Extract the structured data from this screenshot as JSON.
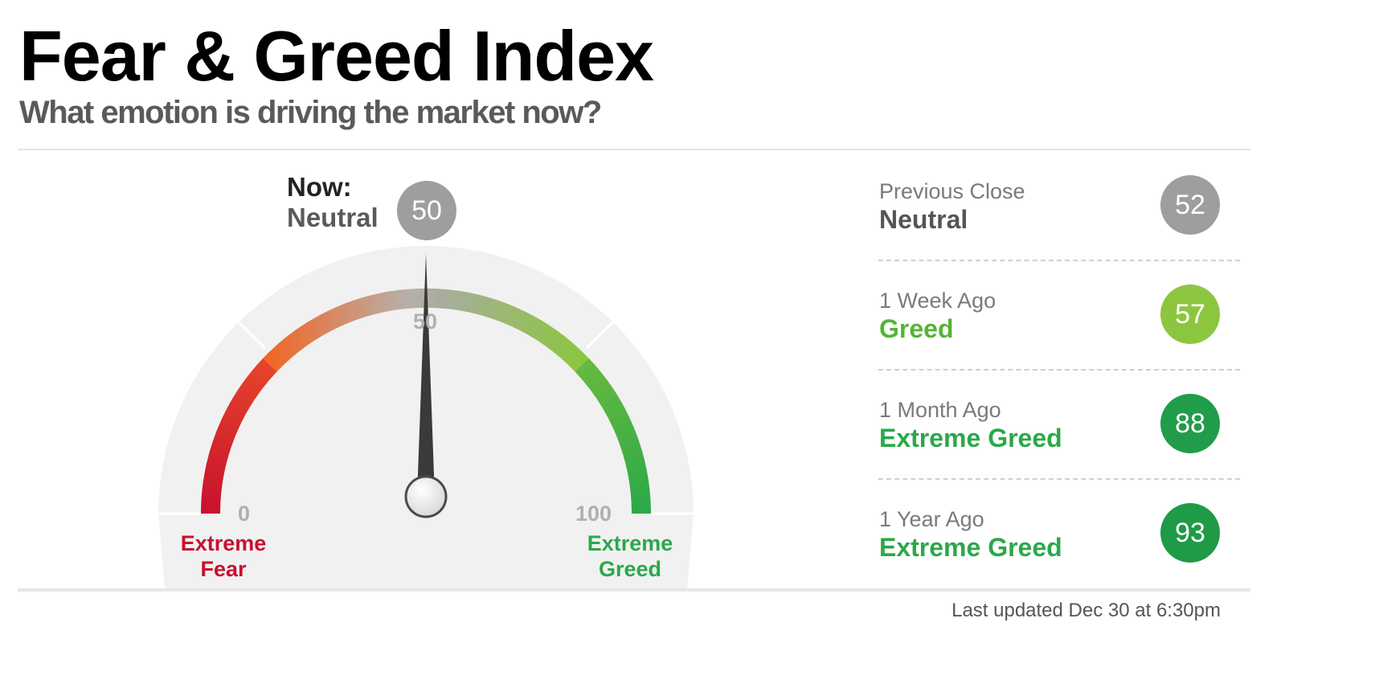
{
  "header": {
    "title": "Fear & Greed Index",
    "subtitle": "What emotion is driving the market now?"
  },
  "gauge": {
    "now_label": "Now:",
    "now_rating": "Neutral",
    "now_score": "50",
    "value": 50,
    "min": 0,
    "max": 100,
    "tick_min": "0",
    "tick_mid": "50",
    "tick_max": "100",
    "low_label_line1": "Extreme",
    "low_label_line2": "Fear",
    "high_label_line1": "Extreme",
    "high_label_line2": "Greed",
    "colors": {
      "extreme_fear": "#c8102e",
      "fear": "#f26522",
      "neutral": "#a8a8a8",
      "greed": "#8cc63f",
      "extreme_greed": "#2ba84a",
      "needle": "#3a3a3a",
      "dial_background": "#f1f1f1"
    }
  },
  "history": [
    {
      "label": "Previous Close",
      "rating": "Neutral",
      "score": "52",
      "rating_color": "#555555",
      "badge_color": "#9e9e9e"
    },
    {
      "label": "1 Week Ago",
      "rating": "Greed",
      "score": "57",
      "rating_color": "#56b339",
      "badge_color": "#8cc63f"
    },
    {
      "label": "1 Month Ago",
      "rating": "Extreme Greed",
      "score": "88",
      "rating_color": "#2ba84a",
      "badge_color": "#219c4a"
    },
    {
      "label": "1 Year Ago",
      "rating": "Extreme Greed",
      "score": "93",
      "rating_color": "#2ba84a",
      "badge_color": "#1f9a47"
    }
  ],
  "footer": {
    "last_updated": "Last updated Dec 30 at 6:30pm"
  }
}
